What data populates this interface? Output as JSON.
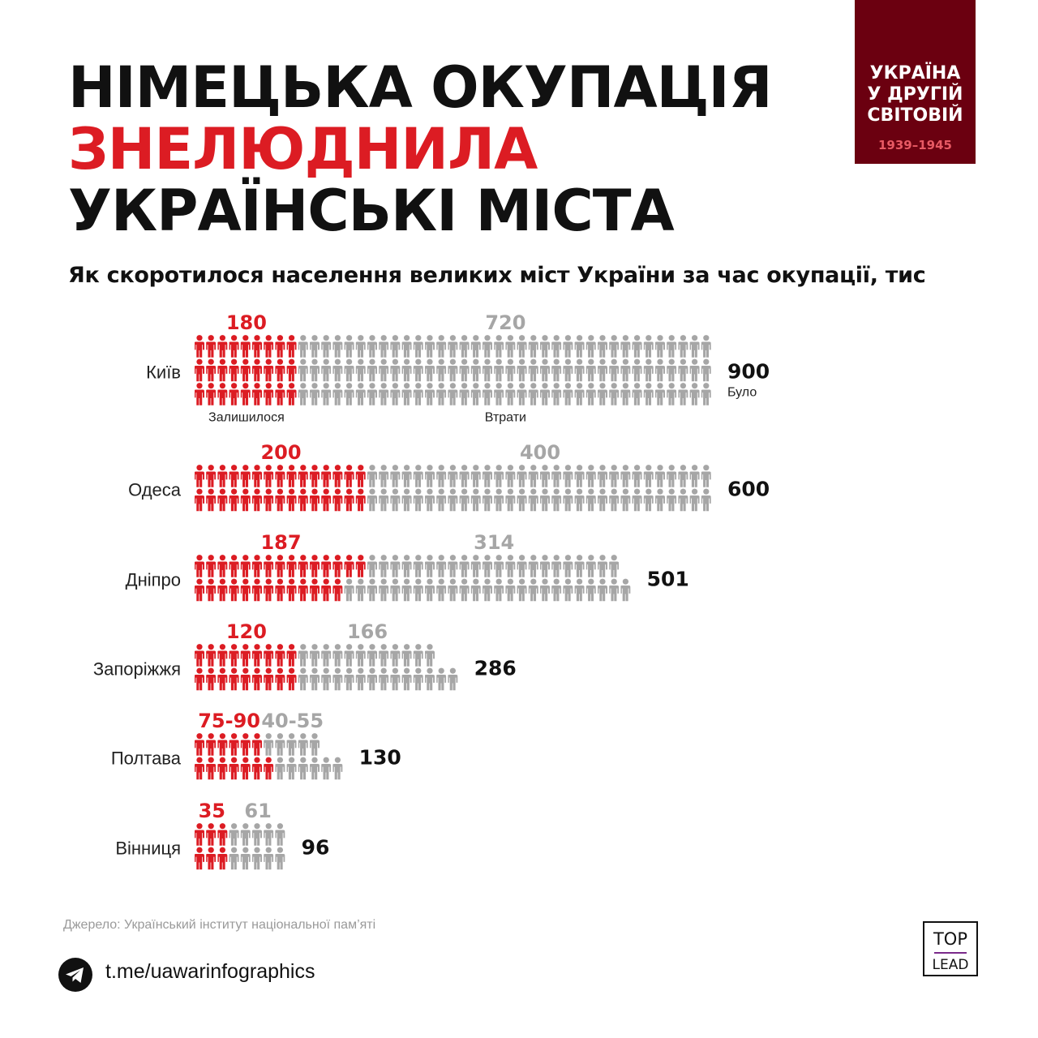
{
  "title": {
    "line1": "НІМЕЦЬКА ОКУПАЦІЯ",
    "line2": "ЗНЕЛЮДНИЛА",
    "line3": "УКРАЇНСЬКІ МІСТА"
  },
  "badge": {
    "line1": "УКРАЇНА",
    "line2": "У ДРУГІЙ",
    "line3": "СВІТОВІЙ",
    "years": "1939–1945"
  },
  "subtitle": "Як скоротилося населення великих міст України за час окупації, тис",
  "chart_data": {
    "type": "pictogram",
    "unit": "тис",
    "legend": {
      "remaining": "Залишилося",
      "lost": "Втрати",
      "before": "Було"
    },
    "colors": {
      "remaining": "#dc1c23",
      "lost": "#a6a6a6",
      "total": "#111111",
      "label": "#222222"
    },
    "series_names": [
      "Залишилося",
      "Втрати",
      "Було"
    ],
    "cities": [
      {
        "name": "Київ",
        "remaining": 180,
        "lost": 720,
        "total": 900,
        "remaining_label": "180",
        "lost_label": "720",
        "total_label": "900",
        "rows": 3,
        "icons": [
          [
            9,
            36
          ],
          [
            9,
            36
          ],
          [
            9,
            36
          ]
        ]
      },
      {
        "name": "Одеса",
        "remaining": 200,
        "lost": 400,
        "total": 600,
        "remaining_label": "200",
        "lost_label": "400",
        "total_label": "600",
        "rows": 2,
        "icons": [
          [
            15,
            30
          ],
          [
            15,
            30
          ]
        ]
      },
      {
        "name": "Дніпро",
        "remaining": 187,
        "lost": 314,
        "total": 501,
        "remaining_label": "187",
        "lost_label": "314",
        "total_label": "501",
        "rows": 2,
        "icons": [
          [
            15,
            22
          ],
          [
            13,
            25
          ]
        ]
      },
      {
        "name": "Запоріжжя",
        "remaining": 120,
        "lost": 166,
        "total": 286,
        "remaining_label": "120",
        "lost_label": "166",
        "total_label": "286",
        "rows": 2,
        "icons": [
          [
            9,
            12
          ],
          [
            9,
            14
          ]
        ]
      },
      {
        "name": "Полтава",
        "remaining": [
          75,
          90
        ],
        "lost": [
          40,
          55
        ],
        "total": 130,
        "remaining_label": "75-90",
        "lost_label": "40-55",
        "total_label": "130",
        "rows": 2,
        "icons": [
          [
            6,
            5
          ],
          [
            7,
            6
          ]
        ]
      },
      {
        "name": "Вінниця",
        "remaining": 35,
        "lost": 61,
        "total": 96,
        "remaining_label": "35",
        "lost_label": "61",
        "total_label": "96",
        "rows": 2,
        "icons": [
          [
            3,
            5
          ],
          [
            3,
            5
          ]
        ]
      }
    ]
  },
  "source": "Джерело: Український інститут національної пам’яті",
  "footer": {
    "link": "t.me/uawarinfographics",
    "logo_top": "TOP",
    "logo_bottom": "LEAD"
  }
}
